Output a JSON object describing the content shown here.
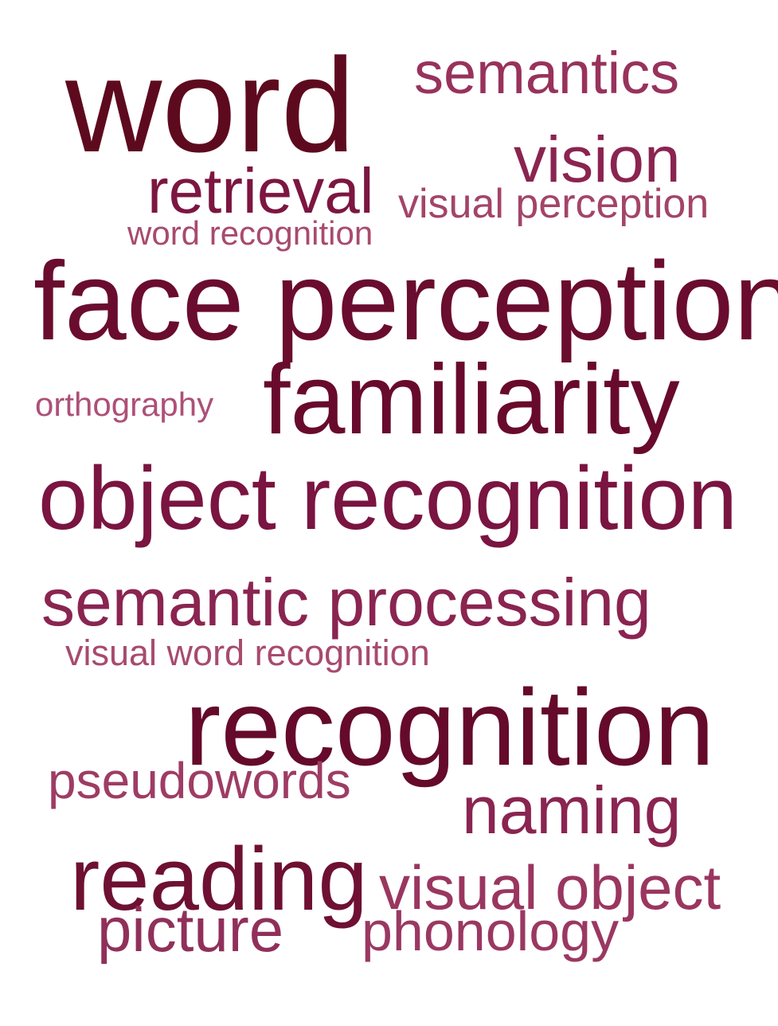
{
  "words": {
    "word": {
      "text": "word",
      "color": "#5e0a1e"
    },
    "semantics": {
      "text": "semantics",
      "color": "#98325c"
    },
    "vision": {
      "text": "vision",
      "color": "#8a2450"
    },
    "retrieval": {
      "text": "retrieval",
      "color": "#7c1640"
    },
    "visual_perception": {
      "text": "visual perception",
      "color": "#a34468"
    },
    "word_recognition": {
      "text": "word recognition",
      "color": "#a84a6e"
    },
    "face_perception": {
      "text": "face perception",
      "color": "#6a0c2e"
    },
    "orthography": {
      "text": "orthography",
      "color": "#ad5078"
    },
    "familiarity": {
      "text": "familiarity",
      "color": "#680a2c"
    },
    "object_recognition": {
      "text": "object recognition",
      "color": "#7a1440"
    },
    "semantic_processing": {
      "text": "semantic processing",
      "color": "#8a2450"
    },
    "visual_word_recognition": {
      "text": "visual word recognition",
      "color": "#a84a6e"
    },
    "recognition": {
      "text": "recognition",
      "color": "#650a2a"
    },
    "pseudowords": {
      "text": "pseudowords",
      "color": "#9e3c64"
    },
    "naming": {
      "text": "naming",
      "color": "#8a2450"
    },
    "reading": {
      "text": "reading",
      "color": "#6e1032"
    },
    "visual_object": {
      "text": "visual object",
      "color": "#9a3660"
    },
    "picture": {
      "text": "picture",
      "color": "#90305a"
    },
    "phonology": {
      "text": "phonology",
      "color": "#9a3862"
    }
  }
}
